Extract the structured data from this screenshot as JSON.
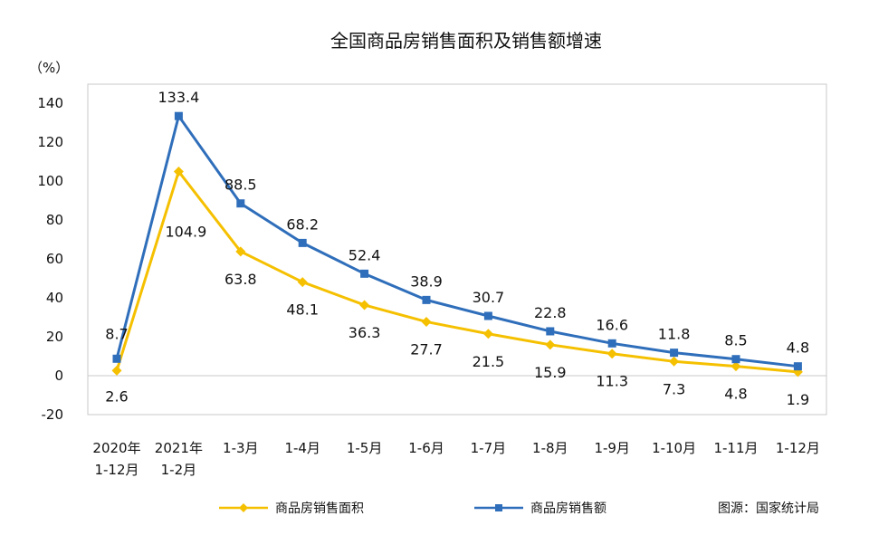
{
  "chart_data": {
    "type": "line",
    "title": "全国商品房销售面积及销售额增速",
    "unit_label": "（%）",
    "categories": [
      [
        "2020年",
        "1-12月"
      ],
      [
        "2021年",
        "1-2月"
      ],
      [
        "1-3月"
      ],
      [
        "1-4月"
      ],
      [
        "1-5月"
      ],
      [
        "1-6月"
      ],
      [
        "1-7月"
      ],
      [
        "1-8月"
      ],
      [
        "1-9月"
      ],
      [
        "1-10月"
      ],
      [
        "1-11月"
      ],
      [
        "1-12月"
      ]
    ],
    "ylim": [
      -20,
      140
    ],
    "yticks": [
      -20,
      0,
      20,
      40,
      60,
      80,
      100,
      120,
      140
    ],
    "grid": false,
    "legend_position": "bottom",
    "series": [
      {
        "name": "商品房销售面积",
        "color": "#F5C000",
        "marker": "diamond",
        "values": [
          2.6,
          104.9,
          63.8,
          48.1,
          36.3,
          27.7,
          21.5,
          15.9,
          11.3,
          7.3,
          4.8,
          1.9
        ],
        "labels": [
          "2.6",
          "104.9",
          "63.8",
          "48.1",
          "36.3",
          "27.7",
          "21.5",
          "15.9",
          "11.3",
          "7.3",
          "4.8",
          "1.9"
        ]
      },
      {
        "name": "商品房销售额",
        "color": "#2F6EBA",
        "marker": "square",
        "values": [
          8.7,
          133.4,
          88.5,
          68.2,
          52.4,
          38.9,
          30.7,
          22.8,
          16.6,
          11.8,
          8.5,
          4.8
        ],
        "labels": [
          "8.7",
          "133.4",
          "88.5",
          "68.2",
          "52.4",
          "38.9",
          "30.7",
          "22.8",
          "16.6",
          "11.8",
          "8.5",
          "4.8"
        ]
      }
    ]
  },
  "source": "图源：国家统计局"
}
